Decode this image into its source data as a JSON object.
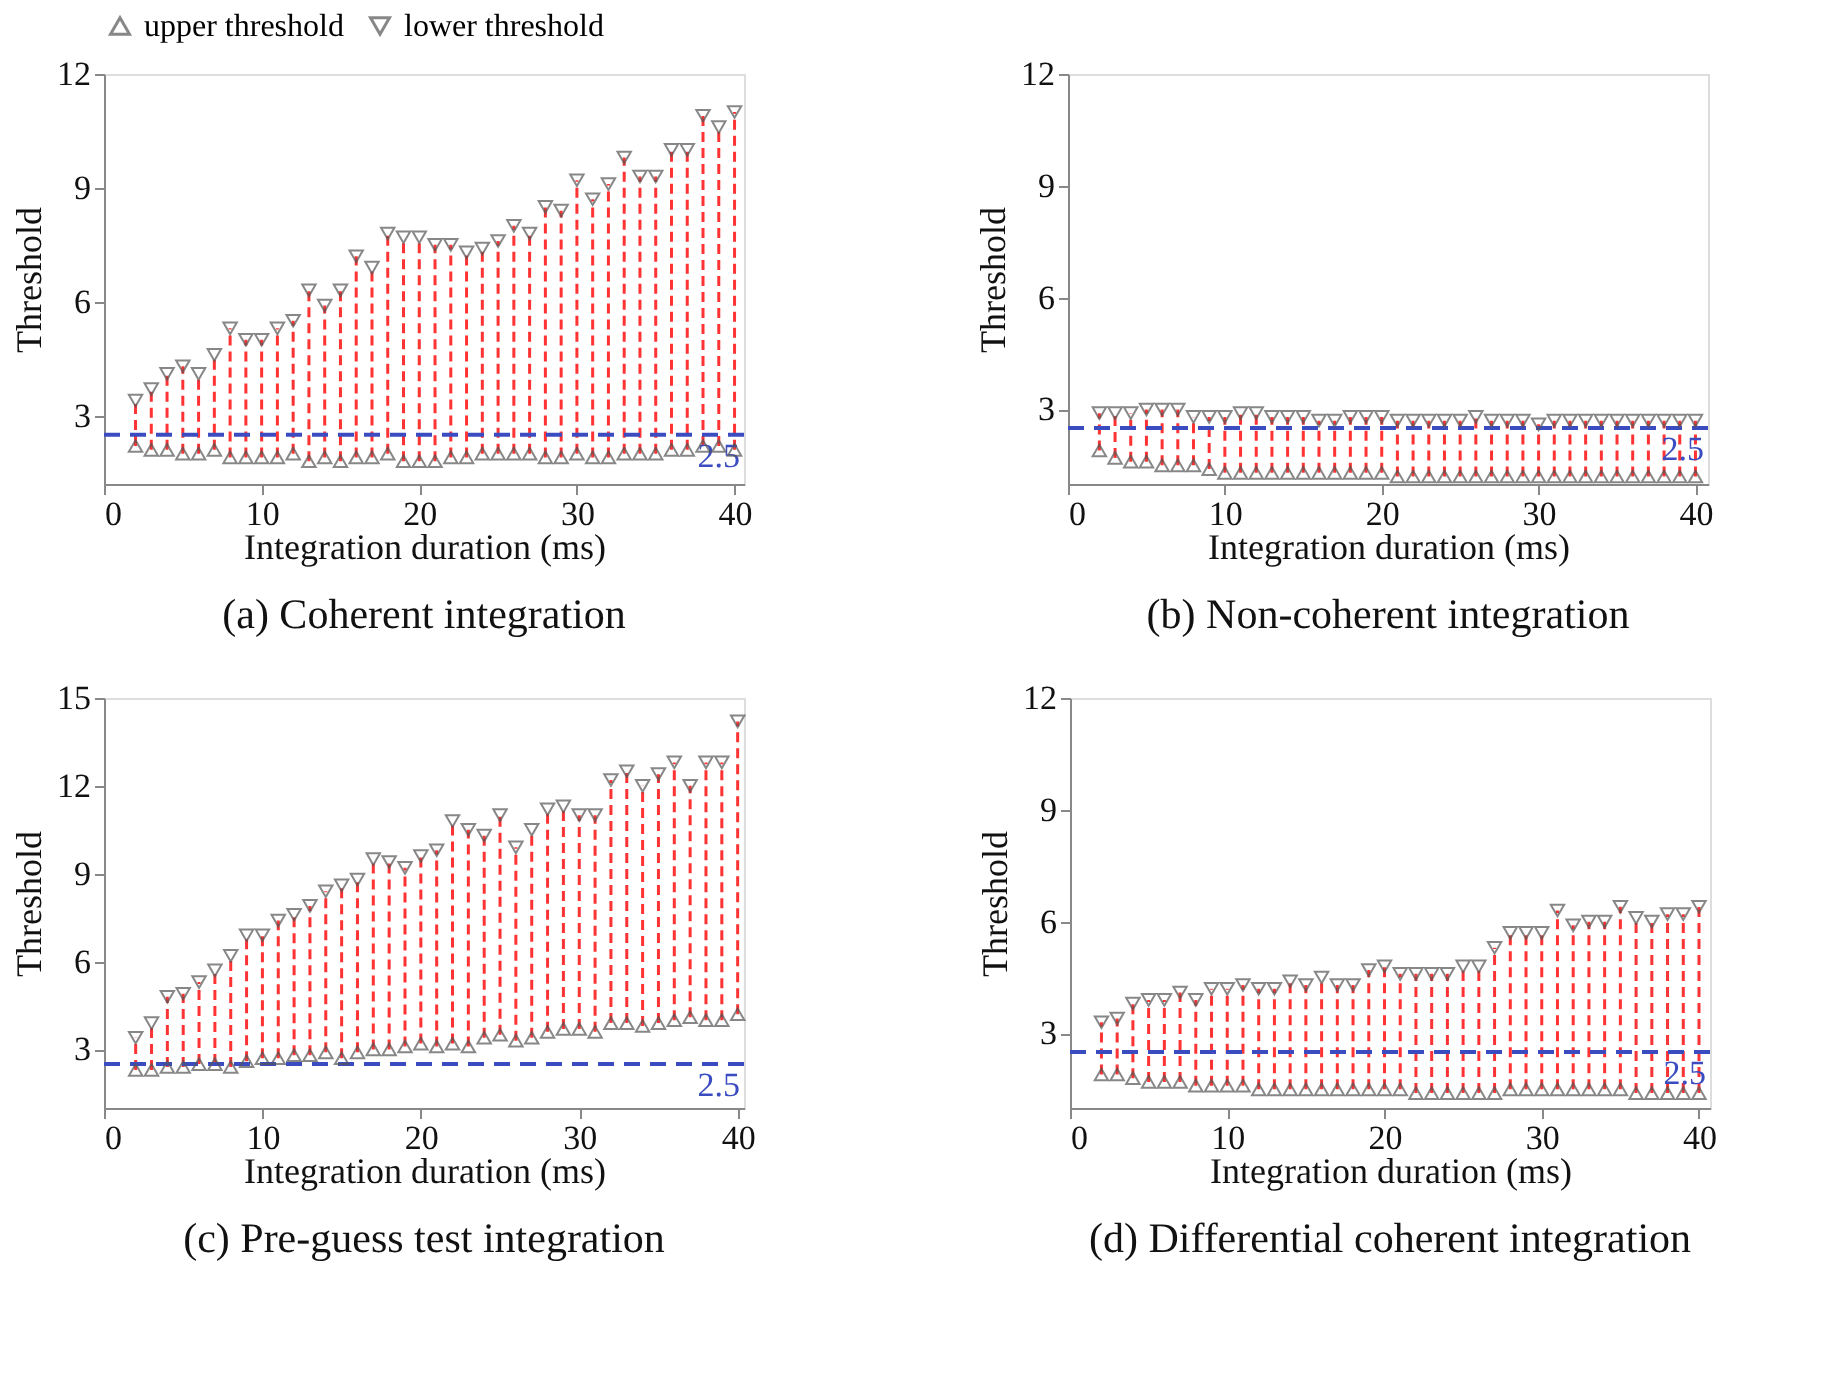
{
  "chart_data": [
    {
      "type": "scatter",
      "title": "(a) Coherent integration",
      "xlabel": "Integration duration (ms)",
      "ylabel": "Threshold",
      "x": [
        2,
        3,
        4,
        5,
        6,
        7,
        8,
        9,
        10,
        11,
        12,
        13,
        14,
        15,
        16,
        17,
        18,
        19,
        20,
        21,
        22,
        23,
        24,
        25,
        26,
        27,
        28,
        29,
        30,
        31,
        32,
        33,
        34,
        35,
        36,
        37,
        38,
        39,
        40
      ],
      "series": [
        {
          "name": "upper threshold",
          "color": "#555555",
          "marker": "triangle",
          "values": [
            2.2,
            2.1,
            2.1,
            2.0,
            2.0,
            2.1,
            1.9,
            1.9,
            1.9,
            1.9,
            2.0,
            1.8,
            1.9,
            1.8,
            1.9,
            1.9,
            2.0,
            1.8,
            1.8,
            1.8,
            1.9,
            1.9,
            2.0,
            2.0,
            2.0,
            2.0,
            1.9,
            1.9,
            2.0,
            1.9,
            1.9,
            2.0,
            2.0,
            2.0,
            2.1,
            2.1,
            2.2,
            2.2,
            2.1
          ]
        },
        {
          "name": "lower threshold",
          "color": "#555555",
          "marker": "triangle-down",
          "values": [
            3.4,
            3.7,
            4.1,
            4.3,
            4.1,
            4.6,
            5.3,
            5.0,
            5.0,
            5.3,
            5.5,
            6.3,
            5.9,
            6.3,
            7.2,
            6.9,
            7.8,
            7.7,
            7.7,
            7.5,
            7.5,
            7.3,
            7.4,
            7.6,
            8.0,
            7.8,
            8.5,
            8.4,
            9.2,
            8.7,
            9.1,
            9.8,
            9.3,
            9.3,
            10.0,
            10.0,
            10.9,
            10.6,
            11.0
          ],
          "errors": [
            [
              2.2,
              3.4
            ],
            [
              2.1,
              3.7
            ],
            [
              2.1,
              4.1
            ],
            [
              2.0,
              4.3
            ],
            [
              2.0,
              4.1
            ],
            [
              2.1,
              4.6
            ],
            [
              1.9,
              5.3
            ],
            [
              1.9,
              5.0
            ],
            [
              1.9,
              5.0
            ],
            [
              1.9,
              5.3
            ],
            [
              2.0,
              5.5
            ],
            [
              1.8,
              6.3
            ],
            [
              1.9,
              5.9
            ],
            [
              1.8,
              6.3
            ],
            [
              1.9,
              7.2
            ],
            [
              1.9,
              6.9
            ],
            [
              2.0,
              7.8
            ],
            [
              1.8,
              7.7
            ],
            [
              1.8,
              7.7
            ],
            [
              1.8,
              7.5
            ],
            [
              1.9,
              7.5
            ],
            [
              1.9,
              7.3
            ],
            [
              2.0,
              7.4
            ],
            [
              2.0,
              7.6
            ],
            [
              2.0,
              8.0
            ],
            [
              2.0,
              7.8
            ],
            [
              1.9,
              8.5
            ],
            [
              1.9,
              8.4
            ],
            [
              2.0,
              9.2
            ],
            [
              1.9,
              8.7
            ],
            [
              1.9,
              9.1
            ],
            [
              2.0,
              9.8
            ],
            [
              2.0,
              9.3
            ],
            [
              2.0,
              9.3
            ],
            [
              2.1,
              10.0
            ],
            [
              2.1,
              10.0
            ],
            [
              2.2,
              10.9
            ],
            [
              2.2,
              10.6
            ],
            [
              2.1,
              11.0
            ]
          ]
        }
      ],
      "xlim": [
        0,
        40.6
      ],
      "ylim": [
        1.2,
        12
      ],
      "xticks": [
        0,
        10,
        20,
        30,
        40
      ],
      "yticks": [
        3,
        6,
        9,
        12
      ],
      "ref_lines": [
        {
          "axis": "y",
          "value": 2.5,
          "label": "2.5",
          "color": "#3b4cc0",
          "line_style": "dashed"
        }
      ],
      "grid": false,
      "legend": "top"
    },
    {
      "type": "scatter",
      "title": "(b) Non-coherent integration",
      "xlabel": "Integration duration (ms)",
      "ylabel": "Threshold",
      "x": [
        2,
        3,
        4,
        5,
        6,
        7,
        8,
        9,
        10,
        11,
        12,
        13,
        14,
        15,
        16,
        17,
        18,
        19,
        20,
        21,
        22,
        23,
        24,
        25,
        26,
        27,
        28,
        29,
        30,
        31,
        32,
        33,
        34,
        35,
        36,
        37,
        38,
        39,
        40
      ],
      "series": [
        {
          "name": "upper threshold",
          "color": "#555555",
          "marker": "triangle",
          "values": [
            1.9,
            1.7,
            1.6,
            1.6,
            1.5,
            1.5,
            1.5,
            1.4,
            1.3,
            1.3,
            1.3,
            1.3,
            1.3,
            1.3,
            1.3,
            1.3,
            1.3,
            1.3,
            1.3,
            1.2,
            1.2,
            1.2,
            1.2,
            1.2,
            1.2,
            1.2,
            1.2,
            1.2,
            1.2,
            1.2,
            1.2,
            1.2,
            1.2,
            1.2,
            1.2,
            1.2,
            1.2,
            1.2,
            1.2
          ]
        },
        {
          "name": "lower threshold",
          "color": "#555555",
          "marker": "triangle-down",
          "values": [
            2.9,
            2.9,
            2.9,
            3.0,
            3.0,
            3.0,
            2.8,
            2.8,
            2.8,
            2.9,
            2.9,
            2.8,
            2.8,
            2.8,
            2.7,
            2.7,
            2.8,
            2.8,
            2.8,
            2.7,
            2.7,
            2.7,
            2.7,
            2.7,
            2.8,
            2.7,
            2.7,
            2.7,
            2.6,
            2.7,
            2.7,
            2.7,
            2.7,
            2.7,
            2.7,
            2.7,
            2.7,
            2.7,
            2.7
          ],
          "errors": [
            [
              1.9,
              2.9
            ],
            [
              1.7,
              2.9
            ],
            [
              1.6,
              2.9
            ],
            [
              1.6,
              3.0
            ],
            [
              1.5,
              3.0
            ],
            [
              1.5,
              3.0
            ],
            [
              1.5,
              2.8
            ],
            [
              1.4,
              2.8
            ],
            [
              1.3,
              2.8
            ],
            [
              1.3,
              2.9
            ],
            [
              1.3,
              2.9
            ],
            [
              1.3,
              2.8
            ],
            [
              1.3,
              2.8
            ],
            [
              1.3,
              2.8
            ],
            [
              1.3,
              2.7
            ],
            [
              1.3,
              2.7
            ],
            [
              1.3,
              2.8
            ],
            [
              1.3,
              2.8
            ],
            [
              1.3,
              2.8
            ],
            [
              1.2,
              2.7
            ],
            [
              1.2,
              2.7
            ],
            [
              1.2,
              2.7
            ],
            [
              1.2,
              2.7
            ],
            [
              1.2,
              2.7
            ],
            [
              1.2,
              2.8
            ],
            [
              1.2,
              2.7
            ],
            [
              1.2,
              2.7
            ],
            [
              1.2,
              2.7
            ],
            [
              1.2,
              2.6
            ],
            [
              1.2,
              2.7
            ],
            [
              1.2,
              2.7
            ],
            [
              1.2,
              2.7
            ],
            [
              1.2,
              2.7
            ],
            [
              1.2,
              2.7
            ],
            [
              1.2,
              2.7
            ],
            [
              1.2,
              2.7
            ],
            [
              1.2,
              2.7
            ],
            [
              1.2,
              2.7
            ],
            [
              1.2,
              2.7
            ]
          ]
        }
      ],
      "xlim": [
        0,
        40.8
      ],
      "ylim": [
        1,
        12
      ],
      "xticks": [
        0,
        10,
        20,
        30,
        40
      ],
      "yticks": [
        3,
        6,
        9,
        12
      ],
      "ref_lines": [
        {
          "axis": "y",
          "value": 2.5,
          "label": "2.5",
          "color": "#3b4cc0",
          "line_style": "dashed"
        }
      ],
      "grid": false
    },
    {
      "type": "scatter",
      "title": "(c) Pre-guess test integration",
      "xlabel": "Integration duration (ms)",
      "ylabel": "Threshold",
      "x": [
        2,
        3,
        4,
        5,
        6,
        7,
        8,
        9,
        10,
        11,
        12,
        13,
        14,
        15,
        16,
        17,
        18,
        19,
        20,
        21,
        22,
        23,
        24,
        25,
        26,
        27,
        28,
        29,
        30,
        31,
        32,
        33,
        34,
        35,
        36,
        37,
        38,
        39,
        40
      ],
      "series": [
        {
          "name": "upper threshold",
          "color": "#555555",
          "marker": "triangle",
          "values": [
            2.3,
            2.3,
            2.4,
            2.4,
            2.5,
            2.5,
            2.4,
            2.6,
            2.7,
            2.7,
            2.8,
            2.8,
            2.9,
            2.7,
            2.9,
            3.0,
            3.0,
            3.1,
            3.2,
            3.1,
            3.2,
            3.1,
            3.4,
            3.5,
            3.3,
            3.4,
            3.6,
            3.7,
            3.7,
            3.6,
            3.9,
            3.9,
            3.8,
            3.9,
            4.0,
            4.1,
            4.0,
            4.0,
            4.2
          ]
        },
        {
          "name": "lower threshold",
          "color": "#555555",
          "marker": "triangle-down",
          "values": [
            3.4,
            3.9,
            4.8,
            4.9,
            5.3,
            5.7,
            6.2,
            6.9,
            6.9,
            7.4,
            7.6,
            7.9,
            8.4,
            8.6,
            8.8,
            9.5,
            9.4,
            9.2,
            9.6,
            9.8,
            10.8,
            10.5,
            10.3,
            11.0,
            9.9,
            10.5,
            11.2,
            11.3,
            11.0,
            11.0,
            12.2,
            12.5,
            12.0,
            12.4,
            12.8,
            12.0,
            12.8,
            12.8,
            14.2
          ],
          "errors": [
            [
              2.3,
              3.4
            ],
            [
              2.3,
              3.9
            ],
            [
              2.4,
              4.8
            ],
            [
              2.4,
              4.9
            ],
            [
              2.5,
              5.3
            ],
            [
              2.5,
              5.7
            ],
            [
              2.4,
              6.2
            ],
            [
              2.6,
              6.9
            ],
            [
              2.7,
              6.9
            ],
            [
              2.7,
              7.4
            ],
            [
              2.8,
              7.6
            ],
            [
              2.8,
              7.9
            ],
            [
              2.9,
              8.4
            ],
            [
              2.7,
              8.6
            ],
            [
              2.9,
              8.8
            ],
            [
              3.0,
              9.5
            ],
            [
              3.0,
              9.4
            ],
            [
              3.1,
              9.2
            ],
            [
              3.2,
              9.6
            ],
            [
              3.1,
              9.8
            ],
            [
              3.2,
              10.8
            ],
            [
              3.1,
              10.5
            ],
            [
              3.4,
              10.3
            ],
            [
              3.5,
              11.0
            ],
            [
              3.3,
              9.9
            ],
            [
              3.4,
              10.5
            ],
            [
              3.6,
              11.2
            ],
            [
              3.7,
              11.3
            ],
            [
              3.7,
              11.0
            ],
            [
              3.6,
              11.0
            ],
            [
              3.9,
              12.2
            ],
            [
              3.9,
              12.5
            ],
            [
              3.8,
              12.0
            ],
            [
              3.9,
              12.4
            ],
            [
              4.0,
              12.8
            ],
            [
              4.1,
              12.0
            ],
            [
              4.0,
              12.8
            ],
            [
              4.0,
              12.8
            ],
            [
              4.2,
              14.2
            ]
          ]
        }
      ],
      "xlim": [
        0,
        40.4
      ],
      "ylim": [
        1,
        15
      ],
      "xticks": [
        0,
        10,
        20,
        30,
        40
      ],
      "yticks": [
        3,
        6,
        9,
        12,
        15
      ],
      "ref_lines": [
        {
          "axis": "y",
          "value": 2.5,
          "label": "2.5",
          "color": "#3b4cc0",
          "line_style": "dashed"
        }
      ],
      "grid": false
    },
    {
      "type": "scatter",
      "title": "(d) Differential coherent integration",
      "xlabel": "Integration duration (ms)",
      "ylabel": "Threshold",
      "x": [
        2,
        3,
        4,
        5,
        6,
        7,
        8,
        9,
        10,
        11,
        12,
        13,
        14,
        15,
        16,
        17,
        18,
        19,
        20,
        21,
        22,
        23,
        24,
        25,
        26,
        27,
        28,
        29,
        30,
        31,
        32,
        33,
        34,
        35,
        36,
        37,
        38,
        39,
        40
      ],
      "series": [
        {
          "name": "upper threshold",
          "color": "#555555",
          "marker": "triangle",
          "values": [
            1.9,
            1.9,
            1.8,
            1.7,
            1.7,
            1.7,
            1.6,
            1.6,
            1.6,
            1.6,
            1.5,
            1.5,
            1.5,
            1.5,
            1.5,
            1.5,
            1.5,
            1.5,
            1.5,
            1.5,
            1.4,
            1.4,
            1.4,
            1.4,
            1.4,
            1.4,
            1.5,
            1.5,
            1.5,
            1.5,
            1.5,
            1.5,
            1.5,
            1.5,
            1.4,
            1.4,
            1.4,
            1.4,
            1.4
          ]
        },
        {
          "name": "lower threshold",
          "color": "#555555",
          "marker": "triangle-down",
          "values": [
            3.3,
            3.4,
            3.8,
            3.9,
            3.9,
            4.1,
            3.9,
            4.2,
            4.2,
            4.3,
            4.2,
            4.2,
            4.4,
            4.3,
            4.5,
            4.3,
            4.3,
            4.7,
            4.8,
            4.6,
            4.6,
            4.6,
            4.6,
            4.8,
            4.8,
            5.3,
            5.7,
            5.7,
            5.7,
            6.3,
            5.9,
            6.0,
            6.0,
            6.4,
            6.1,
            6.0,
            6.2,
            6.2,
            6.4
          ],
          "errors": [
            [
              1.9,
              3.3
            ],
            [
              1.9,
              3.4
            ],
            [
              1.8,
              3.8
            ],
            [
              1.7,
              3.9
            ],
            [
              1.7,
              3.9
            ],
            [
              1.7,
              4.1
            ],
            [
              1.6,
              3.9
            ],
            [
              1.6,
              4.2
            ],
            [
              1.6,
              4.2
            ],
            [
              1.6,
              4.3
            ],
            [
              1.5,
              4.2
            ],
            [
              1.5,
              4.2
            ],
            [
              1.5,
              4.4
            ],
            [
              1.5,
              4.3
            ],
            [
              1.5,
              4.5
            ],
            [
              1.5,
              4.3
            ],
            [
              1.5,
              4.3
            ],
            [
              1.5,
              4.7
            ],
            [
              1.5,
              4.8
            ],
            [
              1.5,
              4.6
            ],
            [
              1.4,
              4.6
            ],
            [
              1.4,
              4.6
            ],
            [
              1.4,
              4.6
            ],
            [
              1.4,
              4.8
            ],
            [
              1.4,
              4.8
            ],
            [
              1.4,
              5.3
            ],
            [
              1.5,
              5.7
            ],
            [
              1.5,
              5.7
            ],
            [
              1.5,
              5.7
            ],
            [
              1.5,
              6.3
            ],
            [
              1.5,
              5.9
            ],
            [
              1.5,
              6.0
            ],
            [
              1.5,
              6.0
            ],
            [
              1.5,
              6.4
            ],
            [
              1.4,
              6.1
            ],
            [
              1.4,
              6.0
            ],
            [
              1.4,
              6.2
            ],
            [
              1.4,
              6.2
            ],
            [
              1.4,
              6.4
            ]
          ]
        }
      ],
      "xlim": [
        0,
        40.7
      ],
      "ylim": [
        1,
        12
      ],
      "xticks": [
        0,
        10,
        20,
        30,
        40
      ],
      "yticks": [
        3,
        6,
        9,
        12
      ],
      "ref_lines": [
        {
          "axis": "y",
          "value": 2.5,
          "label": "2.5",
          "color": "#3b4cc0",
          "line_style": "dashed"
        }
      ],
      "grid": false
    }
  ]
}
